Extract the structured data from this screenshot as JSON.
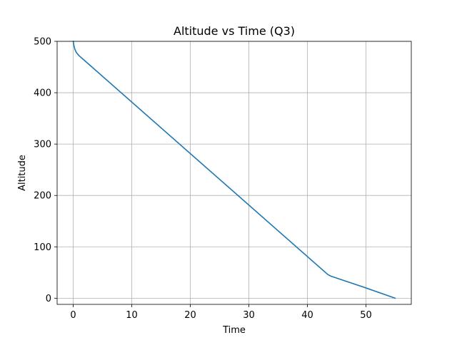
{
  "chart_data": {
    "type": "line",
    "title": "Altitude vs Time (Q3)",
    "xlabel": "Time",
    "ylabel": "Altitude",
    "xlim": [
      -2.75,
      57.75
    ],
    "ylim": [
      -12,
      500
    ],
    "xticks": [
      0,
      10,
      20,
      30,
      40,
      50
    ],
    "yticks": [
      0,
      100,
      200,
      300,
      400,
      500
    ],
    "grid": true,
    "legend": "none",
    "series": [
      {
        "color": "#1f77b4",
        "x": [
          0,
          0.1,
          0.2,
          0.3,
          0.5,
          0.7,
          1.0,
          1.5,
          2.0,
          43.5,
          44.0,
          50.0,
          55.0
        ],
        "y": [
          500,
          493,
          488,
          484,
          479,
          476,
          472,
          467,
          462,
          46,
          43,
          20,
          0
        ]
      }
    ]
  }
}
